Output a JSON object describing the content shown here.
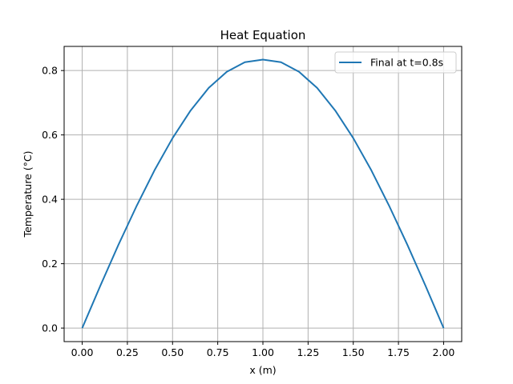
{
  "chart_data": {
    "type": "line",
    "title": "Heat Equation",
    "xlabel": "x (m)",
    "ylabel": "Temperature (°C)",
    "xlim": [
      -0.1,
      2.1
    ],
    "ylim": [
      -0.042,
      0.875
    ],
    "xticks": [
      0.0,
      0.25,
      0.5,
      0.75,
      1.0,
      1.25,
      1.5,
      1.75,
      2.0
    ],
    "xtick_labels": [
      "0.00",
      "0.25",
      "0.50",
      "0.75",
      "1.00",
      "1.25",
      "1.50",
      "1.75",
      "2.00"
    ],
    "yticks": [
      0.0,
      0.2,
      0.4,
      0.6,
      0.8
    ],
    "ytick_labels": [
      "0.0",
      "0.2",
      "0.4",
      "0.6",
      "0.8"
    ],
    "grid": true,
    "legend_position": "top-right",
    "series": [
      {
        "name": "Final at t=0.8s",
        "color": "#1f77b4",
        "x": [
          0.0,
          0.1,
          0.2,
          0.3,
          0.4,
          0.5,
          0.6,
          0.7,
          0.8,
          0.9,
          1.0,
          1.1,
          1.2,
          1.3,
          1.4,
          1.5,
          1.6,
          1.7,
          1.8,
          1.9,
          2.0
        ],
        "y": [
          0.0,
          0.131,
          0.258,
          0.378,
          0.49,
          0.59,
          0.676,
          0.746,
          0.796,
          0.826,
          0.834,
          0.826,
          0.796,
          0.746,
          0.676,
          0.59,
          0.49,
          0.378,
          0.258,
          0.131,
          0.0
        ]
      }
    ]
  }
}
